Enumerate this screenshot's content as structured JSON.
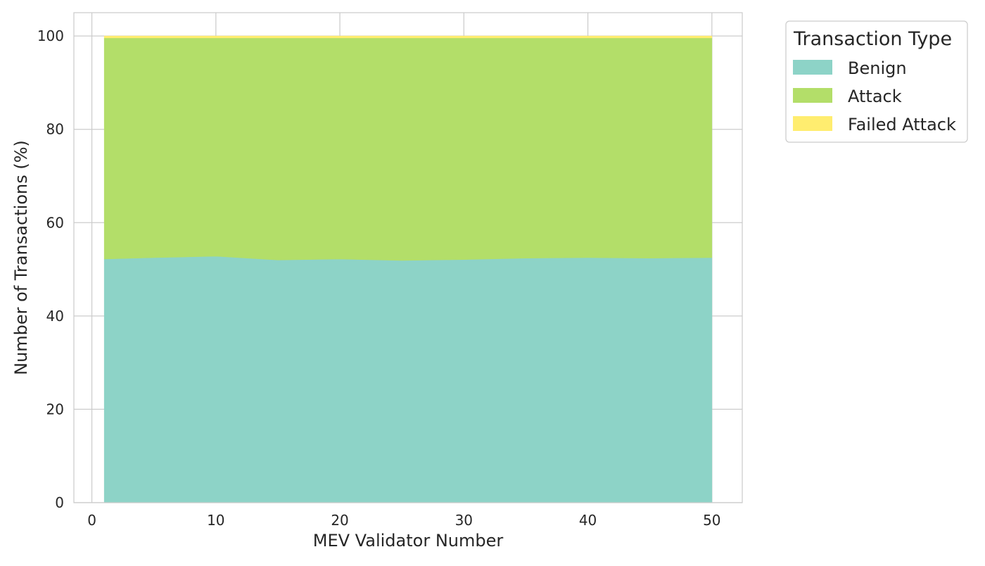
{
  "chart_data": {
    "type": "area",
    "stacked": true,
    "title": "",
    "xlabel": "MEV Validator Number",
    "ylabel": "Number of Transactions (%)",
    "xlim": [
      -1.45,
      52.45
    ],
    "ylim": [
      0,
      105
    ],
    "xticks": [
      0,
      10,
      20,
      30,
      40,
      50
    ],
    "yticks": [
      0,
      20,
      40,
      60,
      80,
      100
    ],
    "grid": true,
    "legend": {
      "title": "Transaction Type",
      "placement": "outside upper right"
    },
    "x": [
      1,
      5,
      10,
      15,
      20,
      25,
      30,
      35,
      40,
      45,
      50
    ],
    "series": [
      {
        "name": "Benign",
        "color": "#8dd3c7",
        "values": [
          52.2,
          52.5,
          52.8,
          52.0,
          52.2,
          51.9,
          52.1,
          52.4,
          52.5,
          52.4,
          52.5
        ]
      },
      {
        "name": "Attack",
        "color": "#b3de69",
        "values": [
          47.4,
          47.1,
          46.8,
          47.6,
          47.4,
          47.7,
          47.5,
          47.2,
          47.1,
          47.2,
          47.1
        ]
      },
      {
        "name": "Failed Attack",
        "color": "#ffed6f",
        "values": [
          0.4,
          0.4,
          0.4,
          0.4,
          0.4,
          0.4,
          0.4,
          0.4,
          0.4,
          0.4,
          0.4
        ]
      }
    ]
  }
}
